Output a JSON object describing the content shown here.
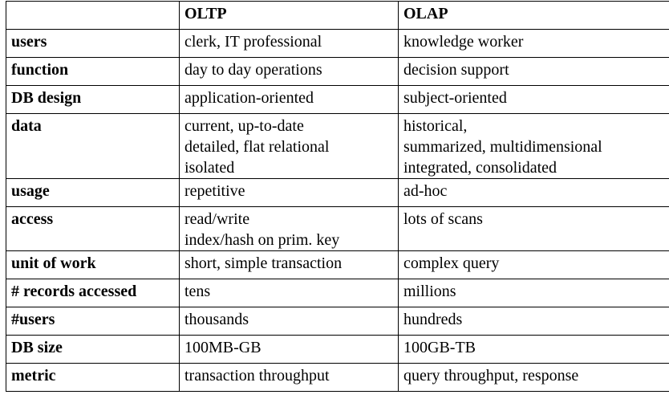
{
  "header": {
    "blank": "",
    "oltp": "OLTP",
    "olap": "OLAP"
  },
  "rows": [
    {
      "label": "users",
      "oltp": "clerk, IT professional",
      "olap": "knowledge worker"
    },
    {
      "label": "function",
      "oltp": "day to day operations",
      "olap": "decision support"
    },
    {
      "label": "DB design",
      "oltp": "application-oriented",
      "olap": "subject-oriented"
    },
    {
      "label": "data",
      "oltp": "current, up-to-date\ndetailed, flat relational\nisolated",
      "olap": "historical,\nsummarized, multidimensional\nintegrated, consolidated"
    },
    {
      "label": "usage",
      "oltp": "repetitive",
      "olap": "ad-hoc"
    },
    {
      "label": "access",
      "oltp": "read/write\nindex/hash on prim. key",
      "olap": "lots of scans"
    },
    {
      "label": "unit of work",
      "oltp": "short, simple transaction",
      "olap": "complex query"
    },
    {
      "label": "# records accessed",
      "oltp": "tens",
      "olap": "millions"
    },
    {
      "label": "#users",
      "oltp": "thousands",
      "olap": "hundreds"
    },
    {
      "label": "DB size",
      "oltp": "100MB-GB",
      "olap": "100GB-TB"
    },
    {
      "label": "metric",
      "oltp": "transaction throughput",
      "olap": "query throughput, response"
    }
  ]
}
